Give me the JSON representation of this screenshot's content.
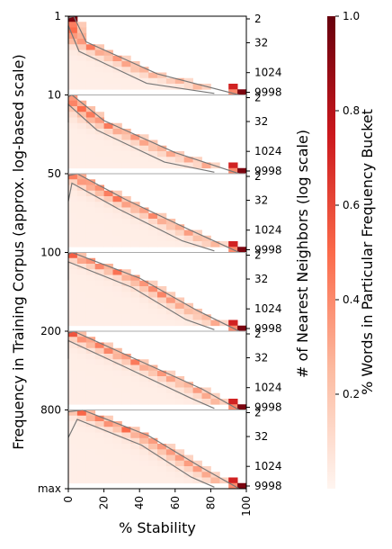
{
  "chart_data": {
    "type": "heatmap",
    "xlabel": "% Stability",
    "ylabel": "Frequency in Training Corpus (approx. log-based scale)",
    "y2label": "# of Nearest Neighbors (log scale)",
    "colorbar_label": "% Words in Particular Frequency Bucket",
    "x_ticks": [
      "0",
      "20",
      "40",
      "60",
      "80",
      "100"
    ],
    "xlim": [
      0,
      100
    ],
    "frequency_ticks": [
      "1",
      "10",
      "50",
      "100",
      "200",
      "800",
      "max"
    ],
    "neighbor_ticks": [
      "2",
      "32",
      "1024",
      "9998"
    ],
    "neighbor_range": [
      2,
      9998
    ],
    "colorbar_ticks": [
      "0.2",
      "0.4",
      "0.6",
      "0.8",
      "1.0"
    ],
    "colorbar_range": [
      0,
      1
    ],
    "colormap": [
      "#fff5f0",
      "#fcbba1",
      "#fb6a4a",
      "#cb181d",
      "#67000d"
    ],
    "grid": false,
    "panels": [
      {
        "frequency_bucket": [
          "1",
          "10"
        ],
        "boundary": [
          {
            "neighbors": 2,
            "stability": 3
          },
          {
            "neighbors": 32,
            "stability": 10
          },
          {
            "neighbors": 1024,
            "stability": 50
          },
          {
            "neighbors": 9998,
            "stability": 96
          }
        ]
      },
      {
        "frequency_bucket": [
          "10",
          "50"
        ],
        "boundary": [
          {
            "neighbors": 2,
            "stability": 2
          },
          {
            "neighbors": 32,
            "stability": 20
          },
          {
            "neighbors": 1024,
            "stability": 60
          },
          {
            "neighbors": 9998,
            "stability": 96
          }
        ]
      },
      {
        "frequency_bucket": [
          "50",
          "100"
        ],
        "boundary": [
          {
            "neighbors": 2,
            "stability": 5
          },
          {
            "neighbors": 32,
            "stability": 32
          },
          {
            "neighbors": 1024,
            "stability": 70
          },
          {
            "neighbors": 9998,
            "stability": 96
          }
        ]
      },
      {
        "frequency_bucket": [
          "100",
          "200"
        ],
        "boundary": [
          {
            "neighbors": 2,
            "stability": 2
          },
          {
            "neighbors": 32,
            "stability": 40
          },
          {
            "neighbors": 1024,
            "stability": 72
          },
          {
            "neighbors": 9998,
            "stability": 96
          }
        ]
      },
      {
        "frequency_bucket": [
          "200",
          "800"
        ],
        "boundary": [
          {
            "neighbors": 2,
            "stability": 3
          },
          {
            "neighbors": 32,
            "stability": 35
          },
          {
            "neighbors": 1024,
            "stability": 75
          },
          {
            "neighbors": 9998,
            "stability": 96
          }
        ]
      },
      {
        "frequency_bucket": [
          "800",
          "max"
        ],
        "boundary": [
          {
            "neighbors": 2,
            "stability": 8
          },
          {
            "neighbors": 32,
            "stability": 45
          },
          {
            "neighbors": 1024,
            "stability": 75
          },
          {
            "neighbors": 9998,
            "stability": 96
          }
        ]
      }
    ]
  }
}
